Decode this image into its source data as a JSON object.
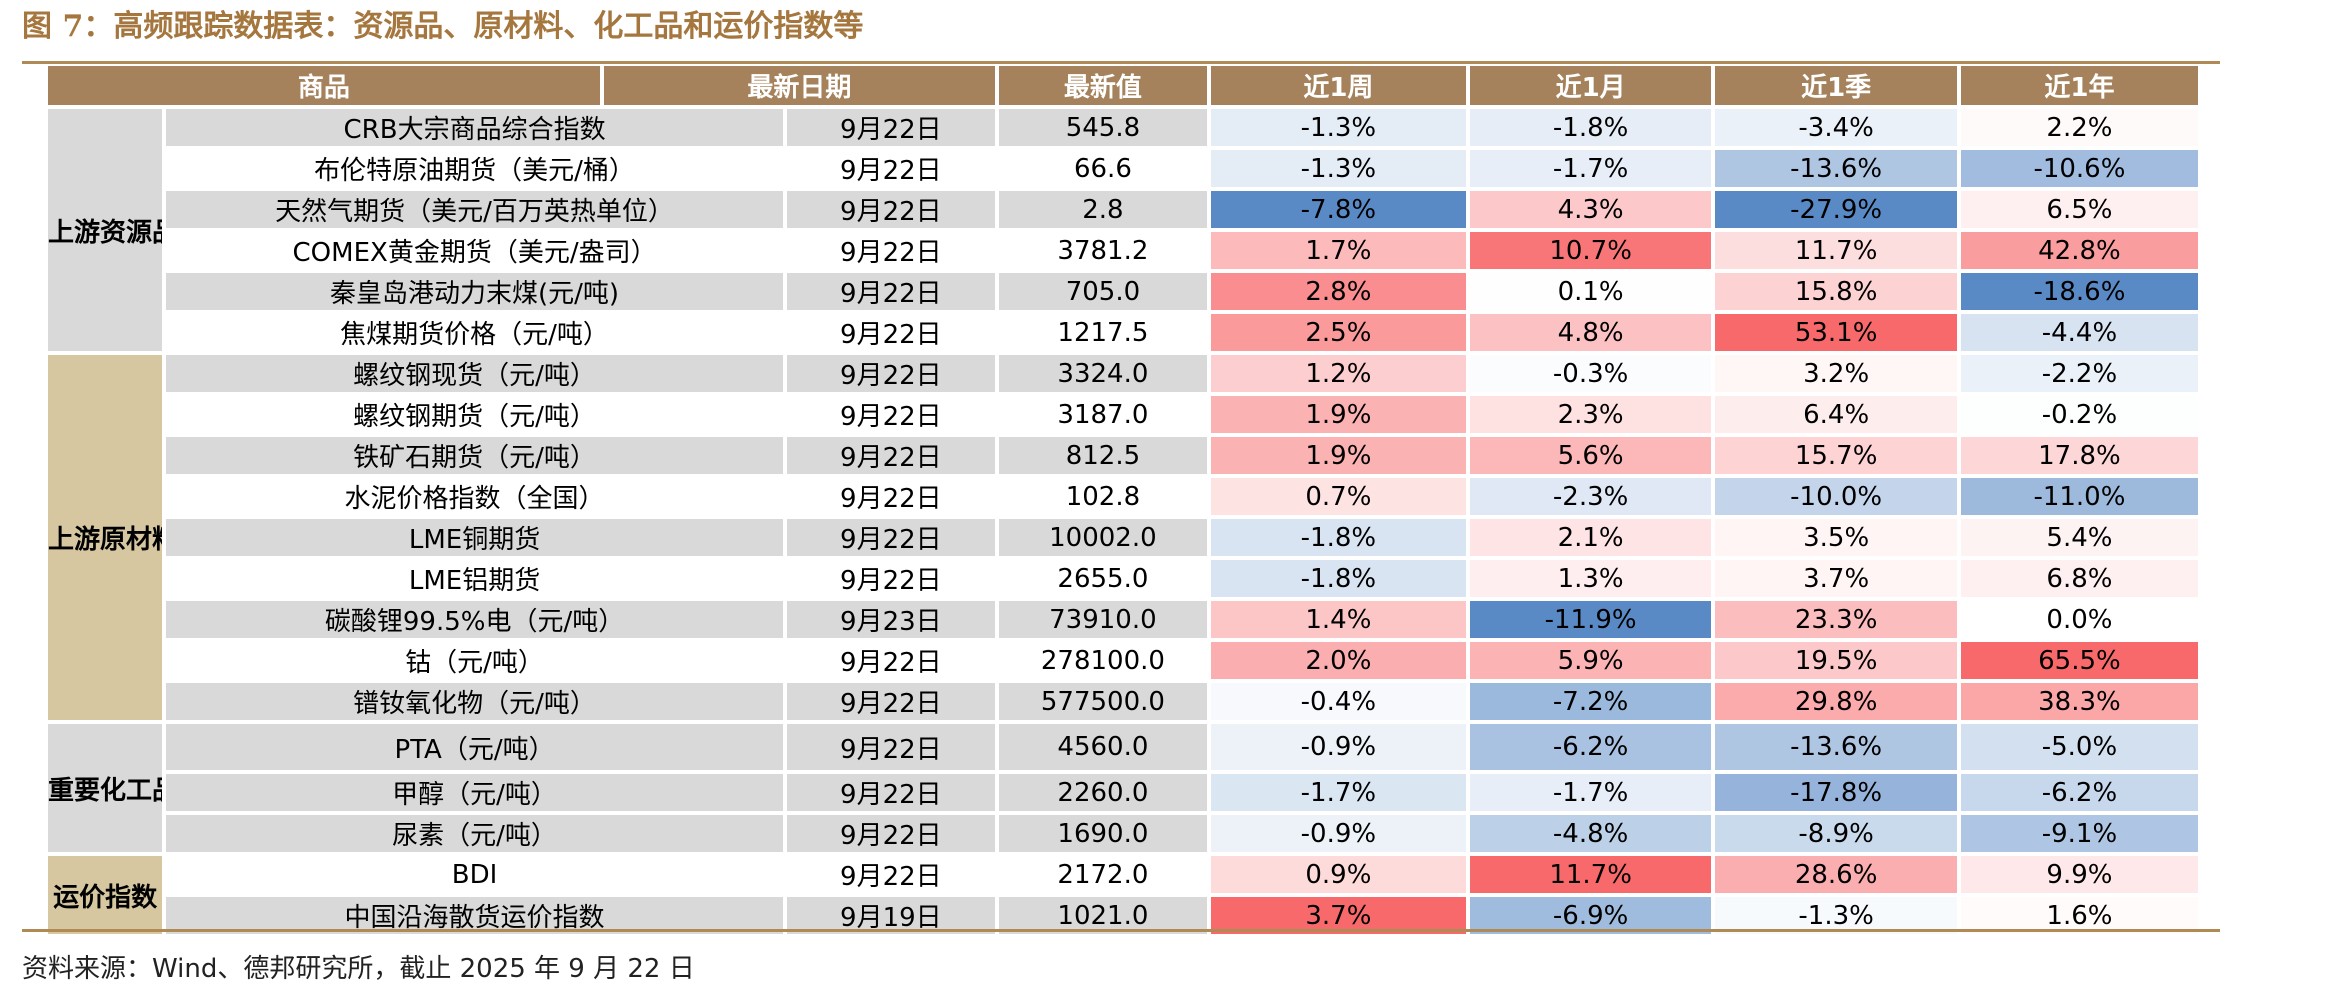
{
  "title": "图 7：高频跟踪数据表：资源品、原材料、化工品和运价指数等",
  "source": "资料来源：Wind、德邦研究所，截止 2025 年 9 月 22 日",
  "colors": {
    "header_bg": "#a5825b",
    "title_color": "#a5773f",
    "category_gray": "#d9d9d9",
    "category_tan": "#d6c7a1",
    "negative_max": "#5a8ac6",
    "positive_max": "#f8696b",
    "neutral": "#ffffff"
  },
  "table": {
    "headers": [
      "商品",
      "最新日期",
      "最新值",
      "近1周",
      "近1月",
      "近1季",
      "近1年"
    ],
    "change_ranges": {
      "w": [
        -7.8,
        3.7
      ],
      "m": [
        -11.9,
        11.7
      ],
      "q": [
        -27.9,
        53.1
      ],
      "y": [
        -18.6,
        65.5
      ]
    },
    "groups": [
      {
        "category": "上游资源品",
        "rows": [
          {
            "name": "CRB大宗商品综合指数",
            "date": "9月22日",
            "value": "545.8",
            "w": "-1.3%",
            "m": "-1.8%",
            "q": "-3.4%",
            "y": "2.2%"
          },
          {
            "name": "布伦特原油期货（美元/桶）",
            "date": "9月22日",
            "value": "66.6",
            "w": "-1.3%",
            "m": "-1.7%",
            "q": "-13.6%",
            "y": "-10.6%"
          },
          {
            "name": "天然气期货（美元/百万英热单位）",
            "date": "9月22日",
            "value": "2.8",
            "w": "-7.8%",
            "m": "4.3%",
            "q": "-27.9%",
            "y": "6.5%"
          },
          {
            "name": "COMEX黄金期货（美元/盎司）",
            "date": "9月22日",
            "value": "3781.2",
            "w": "1.7%",
            "m": "10.7%",
            "q": "11.7%",
            "y": "42.8%"
          },
          {
            "name": "秦皇岛港动力末煤(元/吨)",
            "date": "9月22日",
            "value": "705.0",
            "w": "2.8%",
            "m": "0.1%",
            "q": "15.8%",
            "y": "-18.6%"
          },
          {
            "name": "焦煤期货价格（元/吨）",
            "date": "9月22日",
            "value": "1217.5",
            "w": "2.5%",
            "m": "4.8%",
            "q": "53.1%",
            "y": "-4.4%"
          }
        ]
      },
      {
        "category": "上游原材料",
        "rows": [
          {
            "name": "螺纹钢现货（元/吨）",
            "date": "9月22日",
            "value": "3324.0",
            "w": "1.2%",
            "m": "-0.3%",
            "q": "3.2%",
            "y": "-2.2%"
          },
          {
            "name": "螺纹钢期货（元/吨）",
            "date": "9月22日",
            "value": "3187.0",
            "w": "1.9%",
            "m": "2.3%",
            "q": "6.4%",
            "y": "-0.2%"
          },
          {
            "name": "铁矿石期货（元/吨）",
            "date": "9月22日",
            "value": "812.5",
            "w": "1.9%",
            "m": "5.6%",
            "q": "15.7%",
            "y": "17.8%"
          },
          {
            "name": "水泥价格指数（全国）",
            "date": "9月22日",
            "value": "102.8",
            "w": "0.7%",
            "m": "-2.3%",
            "q": "-10.0%",
            "y": "-11.0%"
          },
          {
            "name": "LME铜期货",
            "date": "9月22日",
            "value": "10002.0",
            "w": "-1.8%",
            "m": "2.1%",
            "q": "3.5%",
            "y": "5.4%"
          },
          {
            "name": "LME铝期货",
            "date": "9月22日",
            "value": "2655.0",
            "w": "-1.8%",
            "m": "1.3%",
            "q": "3.7%",
            "y": "6.8%"
          },
          {
            "name": "碳酸锂99.5%电（元/吨）",
            "date": "9月23日",
            "value": "73910.0",
            "w": "1.4%",
            "m": "-11.9%",
            "q": "23.3%",
            "y": "0.0%"
          },
          {
            "name": "钴（元/吨）",
            "date": "9月22日",
            "value": "278100.0",
            "w": "2.0%",
            "m": "5.9%",
            "q": "19.5%",
            "y": "65.5%"
          },
          {
            "name": "镨钕氧化物（元/吨）",
            "date": "9月22日",
            "value": "577500.0",
            "w": "-0.4%",
            "m": "-7.2%",
            "q": "29.8%",
            "y": "38.3%"
          }
        ]
      },
      {
        "category": "重要化工品",
        "rows": [
          {
            "name": "PTA（元/吨）",
            "date": "9月22日",
            "value": "4560.0",
            "w": "-0.9%",
            "m": "-6.2%",
            "q": "-13.6%",
            "y": "-5.0%"
          },
          {
            "name": "甲醇（元/吨）",
            "date": "9月22日",
            "value": "2260.0",
            "w": "-1.7%",
            "m": "-1.7%",
            "q": "-17.8%",
            "y": "-6.2%"
          },
          {
            "name": "尿素（元/吨）",
            "date": "9月22日",
            "value": "1690.0",
            "w": "-0.9%",
            "m": "-4.8%",
            "q": "-8.9%",
            "y": "-9.1%"
          }
        ]
      },
      {
        "category": "运价指数",
        "rows": [
          {
            "name": "BDI",
            "date": "9月22日",
            "value": "2172.0",
            "w": "0.9%",
            "m": "11.7%",
            "q": "28.6%",
            "y": "9.9%"
          },
          {
            "name": "中国沿海散货运价指数",
            "date": "9月19日",
            "value": "1021.0",
            "w": "3.7%",
            "m": "-6.9%",
            "q": "-1.3%",
            "y": "1.6%"
          }
        ]
      }
    ]
  }
}
